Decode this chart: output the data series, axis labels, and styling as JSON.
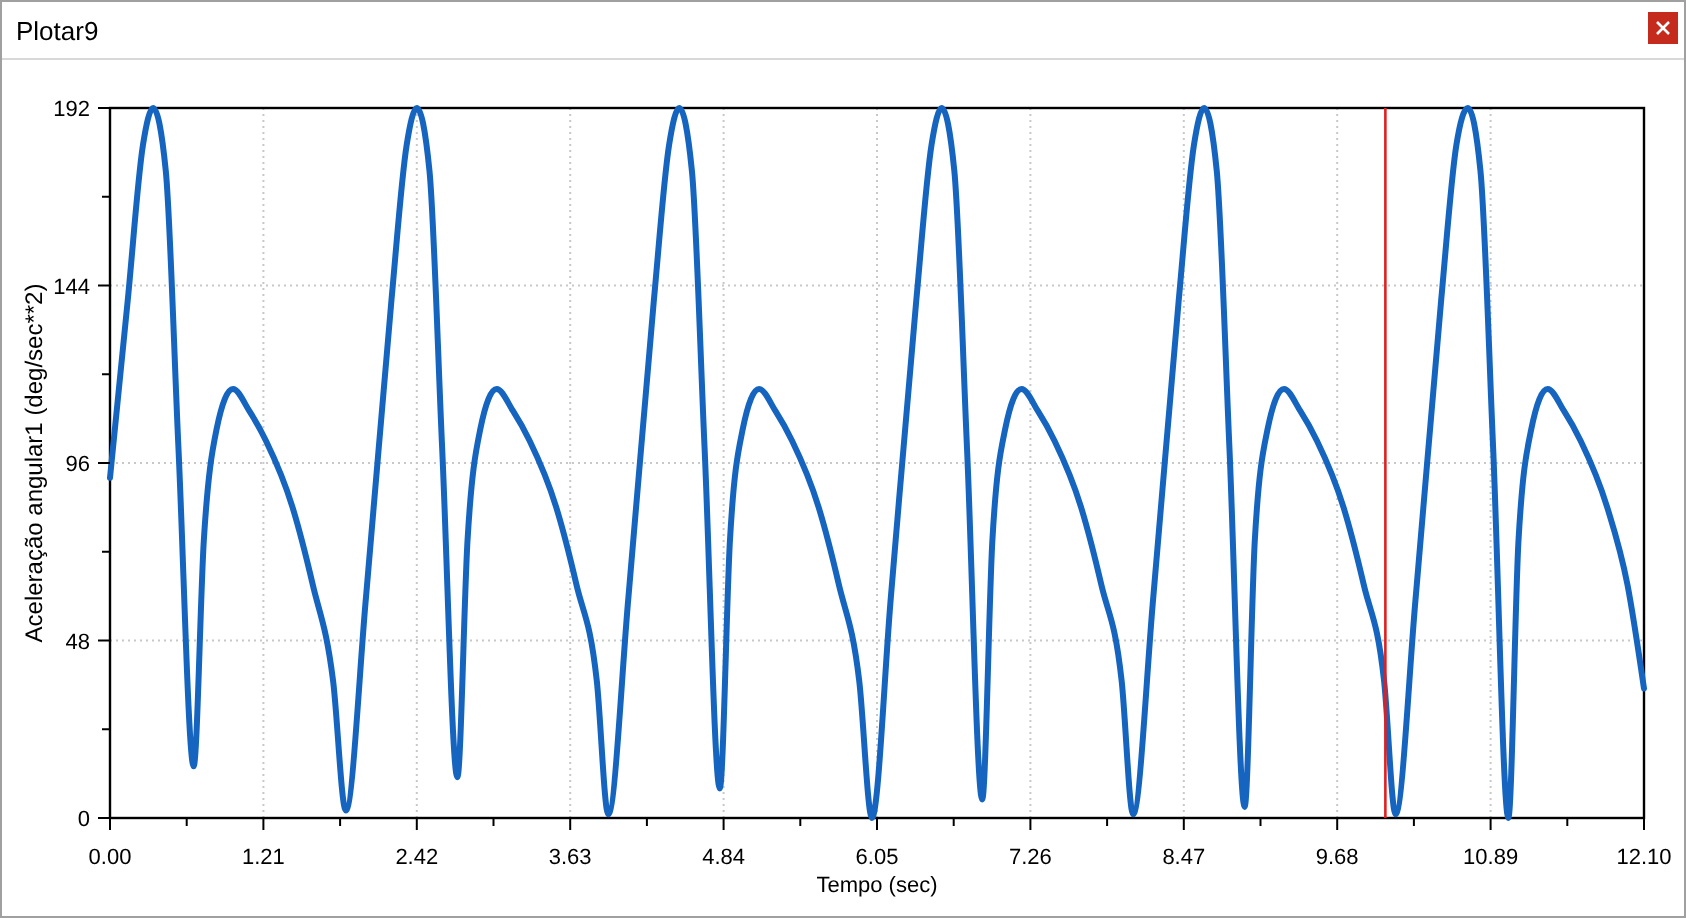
{
  "chart_data": {
    "type": "line",
    "title": "Plotar9",
    "xlabel": "Tempo (sec)",
    "ylabel": "Aceleração angular1 (deg/sec**2)",
    "xlim": [
      0,
      12.1
    ],
    "ylim": [
      0,
      192
    ],
    "xticks": [
      {
        "value": 0,
        "label": "0.00"
      },
      {
        "value": 0.605,
        "label": null
      },
      {
        "value": 1.21,
        "label": "1.21"
      },
      {
        "value": 1.815,
        "label": null
      },
      {
        "value": 2.42,
        "label": "2.42"
      },
      {
        "value": 3.025,
        "label": null
      },
      {
        "value": 3.63,
        "label": "3.63"
      },
      {
        "value": 4.235,
        "label": null
      },
      {
        "value": 4.84,
        "label": "4.84"
      },
      {
        "value": 5.445,
        "label": null
      },
      {
        "value": 6.05,
        "label": "6.05"
      },
      {
        "value": 6.655,
        "label": null
      },
      {
        "value": 7.26,
        "label": "7.26"
      },
      {
        "value": 7.865,
        "label": null
      },
      {
        "value": 8.47,
        "label": "8.47"
      },
      {
        "value": 9.075,
        "label": null
      },
      {
        "value": 9.68,
        "label": "9.68"
      },
      {
        "value": 10.285,
        "label": null
      },
      {
        "value": 10.89,
        "label": "10.89"
      },
      {
        "value": 11.495,
        "label": null
      },
      {
        "value": 12.1,
        "label": "12.10"
      }
    ],
    "yticks": [
      0,
      {
        "value": 24,
        "label": null
      },
      48,
      {
        "value": 72,
        "label": null
      },
      96,
      {
        "value": 120,
        "label": null
      },
      144,
      {
        "value": 168,
        "label": null
      },
      192
    ],
    "grid": true,
    "marker": "none",
    "line_style": "solid",
    "ref_lines": [
      {
        "axis": "x",
        "value": 10.06,
        "label": null,
        "color": "#e02020"
      }
    ],
    "series": [
      {
        "color": "#1565c0",
        "x": [
          0,
          0.14,
          0.26,
          0.34,
          0.44,
          0.54,
          0.66,
          0.74,
          0.84,
          0.97,
          1.1,
          1.23,
          1.44,
          1.6,
          1.76,
          1.86,
          2.02,
          2.22,
          2.34,
          2.42,
          2.52,
          2.62,
          2.74,
          2.82,
          2.92,
          3.05,
          3.18,
          3.31,
          3.52,
          3.68,
          3.84,
          3.93,
          4.09,
          4.29,
          4.41,
          4.49,
          4.59,
          4.69,
          4.81,
          4.89,
          4.99,
          5.12,
          5.25,
          5.38,
          5.59,
          5.75,
          5.91,
          6.01,
          6.16,
          6.36,
          6.48,
          6.56,
          6.66,
          6.76,
          6.88,
          6.96,
          7.06,
          7.19,
          7.32,
          7.45,
          7.66,
          7.82,
          7.98,
          8.07,
          8.23,
          8.43,
          8.55,
          8.63,
          8.73,
          8.83,
          8.95,
          9.03,
          9.13,
          9.26,
          9.39,
          9.52,
          9.73,
          9.89,
          10.05,
          10.14,
          10.3,
          10.5,
          10.62,
          10.71,
          10.81,
          10.91,
          11.03,
          11.11,
          11.21,
          11.34,
          11.47,
          11.6,
          11.81,
          11.97,
          12.1
        ],
        "values": [
          92,
          140,
          182,
          192,
          175,
          100,
          14,
          75,
          105,
          116,
          110,
          102,
          84,
          63,
          37,
          2,
          60,
          140,
          182,
          192,
          175,
          100,
          11,
          75,
          105,
          116,
          110,
          102,
          84,
          63,
          37,
          1,
          60,
          140,
          182,
          192,
          175,
          100,
          8,
          75,
          105,
          116,
          110,
          102,
          84,
          63,
          37,
          0,
          60,
          140,
          182,
          192,
          175,
          100,
          5,
          75,
          105,
          116,
          110,
          102,
          84,
          63,
          37,
          1,
          60,
          140,
          182,
          192,
          175,
          100,
          3,
          75,
          105,
          116,
          110,
          102,
          84,
          63,
          37,
          1,
          60,
          140,
          182,
          192,
          175,
          100,
          0,
          75,
          105,
          116,
          110,
          102,
          84,
          63,
          35
        ]
      }
    ]
  }
}
